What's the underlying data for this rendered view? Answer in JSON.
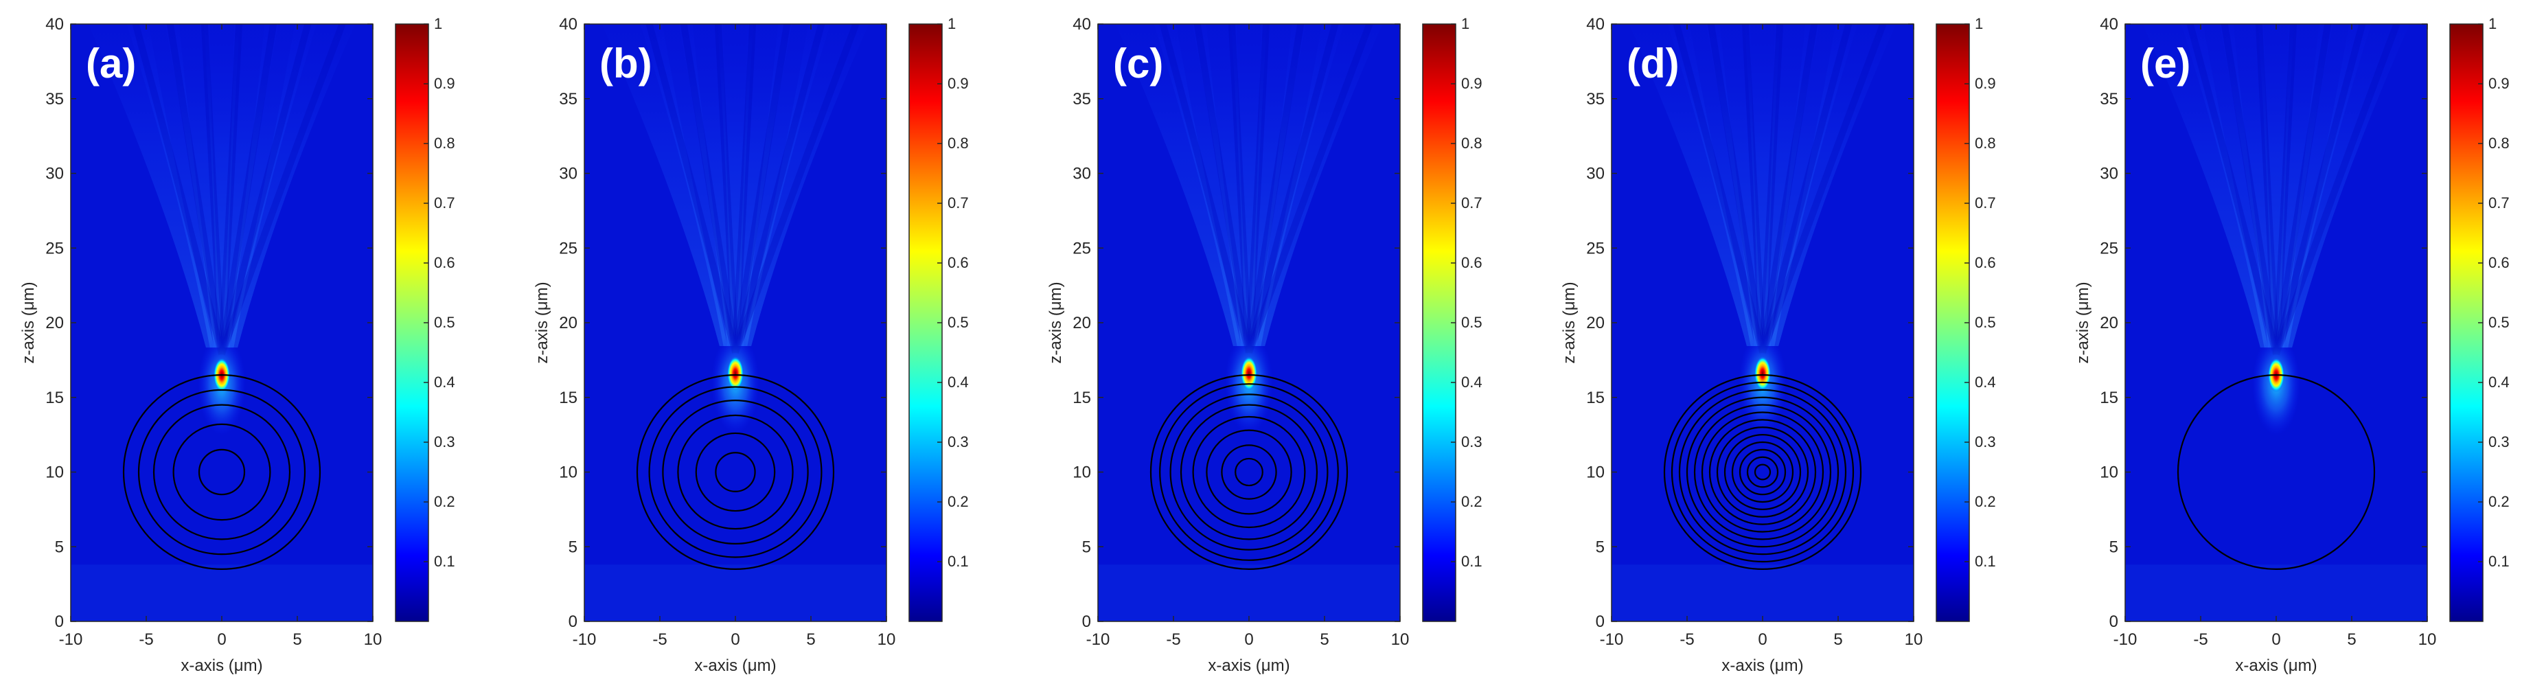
{
  "figure": {
    "description_panels": 5
  },
  "colorbar_ticks": [
    "0.1",
    "0.2",
    "0.3",
    "0.4",
    "0.5",
    "0.6",
    "0.7",
    "0.8",
    "0.9",
    "1"
  ],
  "colormap": [
    "#00008f",
    "#0000ff",
    "#00ffff",
    "#ffff00",
    "#ff0000",
    "#800000"
  ],
  "chart_data": [
    {
      "type": "heatmap",
      "panel_label": "(a)",
      "xlabel": "x-axis (μm)",
      "ylabel": "z-axis (μm)",
      "xlim": [
        -10,
        10
      ],
      "ylim": [
        0,
        40
      ],
      "xticks": [
        "-10",
        "-5",
        "0",
        "5",
        "10"
      ],
      "yticks": [
        "0",
        "5",
        "10",
        "15",
        "20",
        "25",
        "30",
        "35",
        "40"
      ],
      "colorbar_range": [
        0,
        1
      ],
      "focus": {
        "x": 0,
        "z": 16.5,
        "peak": 1
      },
      "sphere": {
        "center_x": 0,
        "center_z": 10,
        "radius": 6.5
      },
      "ring_radii": [
        6.5,
        5.5,
        4.5,
        3.2,
        1.5
      ],
      "ring_count": 5
    },
    {
      "type": "heatmap",
      "panel_label": "(b)",
      "xlabel": "x-axis (μm)",
      "ylabel": "z-axis (μm)",
      "xlim": [
        -10,
        10
      ],
      "ylim": [
        0,
        40
      ],
      "xticks": [
        "-10",
        "-5",
        "0",
        "5",
        "10"
      ],
      "yticks": [
        "0",
        "5",
        "10",
        "15",
        "20",
        "25",
        "30",
        "35",
        "40"
      ],
      "colorbar_range": [
        0,
        1
      ],
      "focus": {
        "x": 0,
        "z": 16.6,
        "peak": 1
      },
      "sphere": {
        "center_x": 0,
        "center_z": 10,
        "radius": 6.5
      },
      "ring_radii": [
        6.5,
        5.7,
        4.8,
        3.8,
        2.6,
        1.3
      ],
      "ring_count": 6
    },
    {
      "type": "heatmap",
      "panel_label": "(c)",
      "xlabel": "x-axis (μm)",
      "ylabel": "z-axis (μm)",
      "xlim": [
        -10,
        10
      ],
      "ylim": [
        0,
        40
      ],
      "xticks": [
        "-10",
        "-5",
        "0",
        "5",
        "10"
      ],
      "yticks": [
        "0",
        "5",
        "10",
        "15",
        "20",
        "25",
        "30",
        "35",
        "40"
      ],
      "colorbar_range": [
        0,
        1
      ],
      "focus": {
        "x": 0,
        "z": 16.6,
        "peak": 1
      },
      "sphere": {
        "center_x": 0,
        "center_z": 10,
        "radius": 6.5
      },
      "ring_radii": [
        6.5,
        5.9,
        5.2,
        4.5,
        3.7,
        2.8,
        1.8,
        0.9
      ],
      "ring_count": 8
    },
    {
      "type": "heatmap",
      "panel_label": "(d)",
      "xlabel": "x-axis (μm)",
      "ylabel": "z-axis (μm)",
      "xlim": [
        -10,
        10
      ],
      "ylim": [
        0,
        40
      ],
      "xticks": [
        "-10",
        "-5",
        "0",
        "5",
        "10"
      ],
      "yticks": [
        "0",
        "5",
        "10",
        "15",
        "20",
        "25",
        "30",
        "35",
        "40"
      ],
      "colorbar_range": [
        0,
        1
      ],
      "focus": {
        "x": 0,
        "z": 16.6,
        "peak": 1
      },
      "sphere": {
        "center_x": 0,
        "center_z": 10,
        "radius": 6.5
      },
      "ring_radii": [
        6.5,
        6.0,
        5.5,
        5.0,
        4.5,
        4.0,
        3.5,
        3.0,
        2.5,
        2.0,
        1.5,
        1.0,
        0.5
      ],
      "ring_count": 13
    },
    {
      "type": "heatmap",
      "panel_label": "(e)",
      "xlabel": "x-axis (μm)",
      "ylabel": "z-axis (μm)",
      "xlim": [
        -10,
        10
      ],
      "ylim": [
        0,
        40
      ],
      "xticks": [
        "-10",
        "-5",
        "0",
        "5",
        "10"
      ],
      "yticks": [
        "0",
        "5",
        "10",
        "15",
        "20",
        "25",
        "30",
        "35",
        "40"
      ],
      "colorbar_range": [
        0,
        1
      ],
      "focus": {
        "x": 0,
        "z": 16.5,
        "peak": 1
      },
      "sphere": {
        "center_x": 0,
        "center_z": 10,
        "radius": 6.5
      },
      "ring_radii": [
        6.5
      ],
      "ring_count": 1
    }
  ]
}
